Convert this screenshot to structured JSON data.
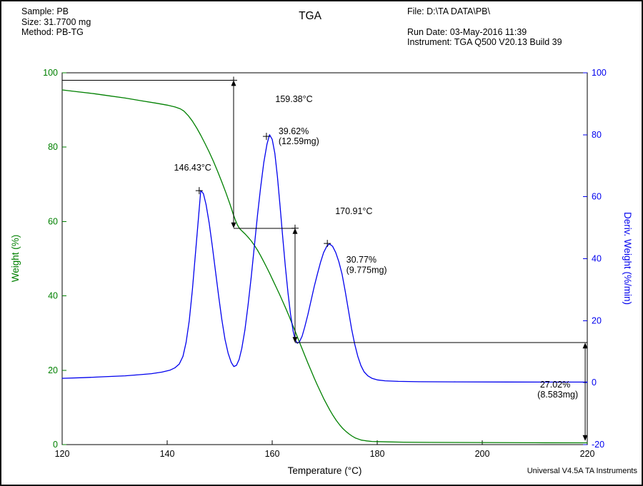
{
  "header": {
    "sample": "Sample: PB",
    "size": "Size:  31.7700 mg",
    "method": "Method: PB-TG",
    "title": "TGA",
    "file": "File: D:\\TA DATA\\PB\\",
    "run_date": "Run Date: 03-May-2016 11:39",
    "instrument": "Instrument: TGA Q500 V20.13 Build 39"
  },
  "footer": {
    "credit": "Universal V4.5A TA Instruments"
  },
  "chart_data": {
    "type": "line",
    "title": "TGA",
    "xlabel": "Temperature (°C)",
    "ylabel_left": "Weight (%)",
    "ylabel_right": "Deriv. Weight (%/min)",
    "xlim": [
      120,
      220
    ],
    "ylim_left": [
      0,
      100
    ],
    "ylim_right": [
      -20,
      100
    ],
    "xticks": [
      120,
      140,
      160,
      180,
      200,
      220
    ],
    "yticks_left": [
      0,
      20,
      40,
      60,
      80,
      100
    ],
    "yticks_right": [
      -20,
      0,
      20,
      40,
      60,
      80,
      100
    ],
    "colors": {
      "weight": "#008000",
      "deriv": "#0000ee",
      "annotation": "#000000"
    },
    "series": [
      {
        "name": "Weight",
        "axis": "left",
        "color": "#008000",
        "points": [
          [
            120,
            95.4
          ],
          [
            123,
            94.9
          ],
          [
            126,
            94.4
          ],
          [
            129,
            93.8
          ],
          [
            132,
            93.2
          ],
          [
            135,
            92.5
          ],
          [
            138,
            91.8
          ],
          [
            140,
            91.3
          ],
          [
            141.5,
            90.8
          ],
          [
            142.5,
            90.3
          ],
          [
            143.2,
            89.7
          ],
          [
            144,
            88.5
          ],
          [
            144.8,
            87.0
          ],
          [
            145.6,
            85.2
          ],
          [
            146.4,
            83.2
          ],
          [
            147.2,
            81.0
          ],
          [
            148,
            78.7
          ],
          [
            148.8,
            76.2
          ],
          [
            149.6,
            73.5
          ],
          [
            150.4,
            70.7
          ],
          [
            151.2,
            67.7
          ],
          [
            152,
            64.5
          ],
          [
            152.6,
            61.9
          ],
          [
            153,
            60.3
          ],
          [
            153.4,
            59.0
          ],
          [
            153.8,
            58.1
          ],
          [
            154.2,
            57.5
          ],
          [
            154.8,
            56.7
          ],
          [
            155.4,
            55.8
          ],
          [
            156,
            54.8
          ],
          [
            156.6,
            53.6
          ],
          [
            157.2,
            52.3
          ],
          [
            157.8,
            50.8
          ],
          [
            158.4,
            49.2
          ],
          [
            159,
            47.5
          ],
          [
            159.6,
            45.8
          ],
          [
            160.2,
            44.0
          ],
          [
            160.8,
            42.2
          ],
          [
            161.4,
            40.4
          ],
          [
            162,
            38.5
          ],
          [
            162.6,
            36.6
          ],
          [
            163.2,
            34.6
          ],
          [
            163.8,
            32.5
          ],
          [
            164.4,
            30.4
          ],
          [
            165,
            28.2
          ],
          [
            165.6,
            26.1
          ],
          [
            166.2,
            24.0
          ],
          [
            166.8,
            21.9
          ],
          [
            167.4,
            19.9
          ],
          [
            168,
            17.9
          ],
          [
            168.6,
            16.0
          ],
          [
            169.2,
            14.2
          ],
          [
            169.8,
            12.4
          ],
          [
            170.4,
            10.8
          ],
          [
            171,
            9.2
          ],
          [
            171.6,
            7.8
          ],
          [
            172.2,
            6.5
          ],
          [
            172.8,
            5.4
          ],
          [
            173.4,
            4.4
          ],
          [
            174,
            3.6
          ],
          [
            174.6,
            2.9
          ],
          [
            175.2,
            2.3
          ],
          [
            175.8,
            1.8
          ],
          [
            176.4,
            1.5
          ],
          [
            177,
            1.2
          ],
          [
            178,
            1.0
          ],
          [
            179,
            0.85
          ],
          [
            180,
            0.8
          ],
          [
            182,
            0.72
          ],
          [
            185,
            0.66
          ],
          [
            190,
            0.6
          ],
          [
            195,
            0.57
          ],
          [
            200,
            0.55
          ],
          [
            210,
            0.5
          ],
          [
            220,
            0.48
          ]
        ]
      },
      {
        "name": "Deriv. Weight",
        "axis": "right",
        "color": "#0000ee",
        "points": [
          [
            120,
            1.4
          ],
          [
            124,
            1.6
          ],
          [
            128,
            1.9
          ],
          [
            132,
            2.2
          ],
          [
            135,
            2.6
          ],
          [
            137,
            2.9
          ],
          [
            139,
            3.4
          ],
          [
            140.5,
            4.0
          ],
          [
            141.5,
            4.8
          ],
          [
            142.3,
            6.0
          ],
          [
            143,
            8.5
          ],
          [
            143.6,
            13
          ],
          [
            144.2,
            20
          ],
          [
            144.8,
            30
          ],
          [
            145.4,
            42
          ],
          [
            146,
            54
          ],
          [
            146.4,
            62
          ],
          [
            146.9,
            61
          ],
          [
            147.4,
            57.5
          ],
          [
            148,
            51.5
          ],
          [
            148.6,
            44
          ],
          [
            149.2,
            36
          ],
          [
            149.8,
            28
          ],
          [
            150.4,
            20.5
          ],
          [
            151,
            14
          ],
          [
            151.6,
            9.5
          ],
          [
            152.2,
            6.5
          ],
          [
            152.7,
            5.2
          ],
          [
            153.2,
            5.6
          ],
          [
            153.7,
            7.5
          ],
          [
            154.2,
            11
          ],
          [
            154.8,
            17
          ],
          [
            155.4,
            25
          ],
          [
            156,
            34
          ],
          [
            156.6,
            44
          ],
          [
            157.2,
            54
          ],
          [
            157.8,
            63
          ],
          [
            158.4,
            71
          ],
          [
            159,
            77
          ],
          [
            159.5,
            80
          ],
          [
            160,
            78.5
          ],
          [
            160.5,
            74
          ],
          [
            161,
            66.5
          ],
          [
            161.5,
            57
          ],
          [
            162,
            47
          ],
          [
            162.5,
            37.5
          ],
          [
            163,
            29
          ],
          [
            163.5,
            22
          ],
          [
            164,
            16.5
          ],
          [
            164.4,
            13.8
          ],
          [
            164.8,
            12.7
          ],
          [
            165.2,
            13.2
          ],
          [
            165.7,
            15
          ],
          [
            166.2,
            18
          ],
          [
            166.8,
            22
          ],
          [
            167.4,
            26.5
          ],
          [
            168,
            31
          ],
          [
            168.6,
            35
          ],
          [
            169.2,
            38.8
          ],
          [
            169.8,
            42
          ],
          [
            170.4,
            44
          ],
          [
            170.9,
            44.8
          ],
          [
            171.5,
            44
          ],
          [
            172.1,
            42
          ],
          [
            172.7,
            39
          ],
          [
            173.3,
            35
          ],
          [
            173.9,
            29.5
          ],
          [
            174.5,
            23.5
          ],
          [
            175.1,
            17.5
          ],
          [
            175.7,
            12.5
          ],
          [
            176.3,
            8.5
          ],
          [
            176.9,
            5.5
          ],
          [
            177.5,
            3.5
          ],
          [
            178.2,
            2.2
          ],
          [
            179,
            1.4
          ],
          [
            180,
            0.9
          ],
          [
            181.5,
            0.6
          ],
          [
            184,
            0.4
          ],
          [
            188,
            0.3
          ],
          [
            195,
            0.25
          ],
          [
            205,
            0.2
          ],
          [
            220,
            0.18
          ]
        ]
      }
    ],
    "annotations": {
      "labels": [
        {
          "text": "146.43°C",
          "x": 141.3,
          "y": 73.7
        },
        {
          "text": "159.38°C",
          "x": 160.6,
          "y": 92.1
        },
        {
          "text": "39.62%",
          "x": 161.2,
          "y": 83.5
        },
        {
          "text": "(12.59mg)",
          "x": 161.2,
          "y": 80.8
        },
        {
          "text": "170.91°C",
          "x": 172.0,
          "y": 62.0
        },
        {
          "text": "30.77%",
          "x": 174.1,
          "y": 48.9
        },
        {
          "text": "(9.775mg)",
          "x": 174.1,
          "y": 46.2
        },
        {
          "text": "27.02%",
          "x": 211.0,
          "y": 15.4
        },
        {
          "text": "(8.583mg)",
          "x": 210.5,
          "y": 12.7
        }
      ],
      "hlines": [
        {
          "y": 98.0,
          "x1": 120.0,
          "x2": 152.65,
          "marker_end": true
        },
        {
          "y": 58.2,
          "x1": 152.65,
          "x2": 164.35,
          "marker_end": true
        },
        {
          "y": 27.4,
          "x1": 164.35,
          "x2": 220.0,
          "marker_end": false
        }
      ],
      "varrows": [
        {
          "x": 152.65,
          "y1": 98.0,
          "y2": 58.2
        },
        {
          "x": 164.35,
          "y1": 58.2,
          "y2": 27.4
        },
        {
          "x": 219.6,
          "y1": 27.4,
          "y2": 1.0
        }
      ],
      "peak_markers": [
        {
          "x": 146.1,
          "y": 68.3
        },
        {
          "x": 158.9,
          "y": 82.9
        },
        {
          "x": 170.5,
          "y": 54.1
        }
      ]
    }
  }
}
